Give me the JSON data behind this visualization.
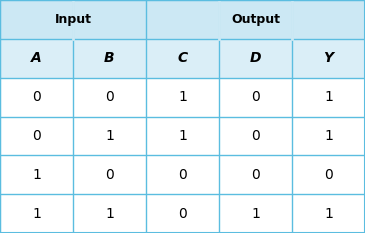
{
  "header_row1_left": "Input",
  "header_row1_right": "Output",
  "header_row2": [
    "A",
    "B",
    "C",
    "D",
    "Y"
  ],
  "data_rows": [
    [
      "0",
      "0",
      "1",
      "0",
      "1"
    ],
    [
      "0",
      "1",
      "1",
      "0",
      "1"
    ],
    [
      "1",
      "0",
      "0",
      "0",
      "0"
    ],
    [
      "1",
      "1",
      "0",
      "1",
      "1"
    ]
  ],
  "header_bg": "#cce8f4",
  "col_header_bg": "#daeef7",
  "data_bg": "#ffffff",
  "border_color": "#5bbde0",
  "text_color": "#000000",
  "group_header_fontsize": 9,
  "col_header_fontsize": 10,
  "data_fontsize": 10,
  "fig_width": 3.65,
  "fig_height": 2.33,
  "dpi": 100
}
